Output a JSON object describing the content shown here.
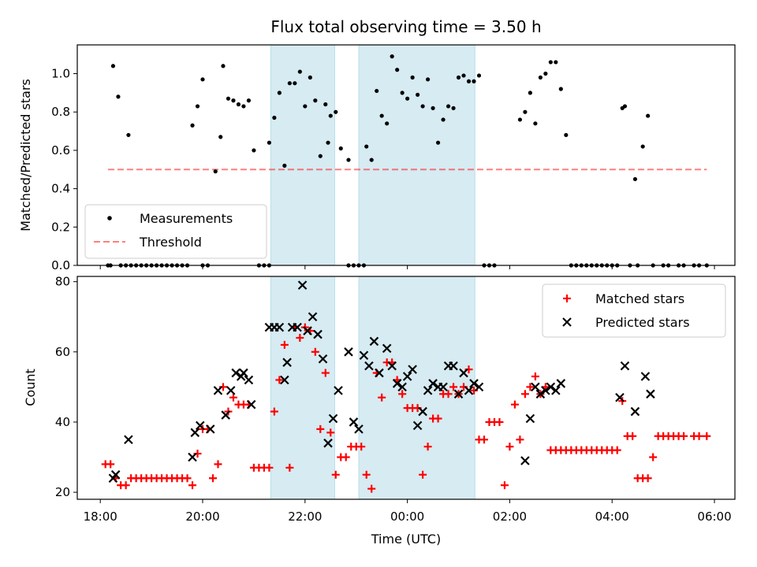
{
  "chart_data": [
    {
      "type": "scatter",
      "title": "Flux total observing time = 3.50 h",
      "xlabel": "",
      "ylabel": "Matched/Predicted stars",
      "xlim": [
        17.55,
        30.4
      ],
      "ylim": [
        0.0,
        1.15
      ],
      "yticks": [
        0.0,
        0.2,
        0.4,
        0.6,
        0.8,
        1.0
      ],
      "ytick_labels": [
        "0.0",
        "0.2",
        "0.4",
        "0.6",
        "0.8",
        "1.0"
      ],
      "legend": {
        "position": "lower-left",
        "entries": [
          "Measurements",
          "Threshold"
        ]
      },
      "shaded_intervals": [
        [
          21.33,
          22.58
        ],
        [
          23.05,
          25.32
        ]
      ],
      "threshold": {
        "name": "Threshold",
        "value": 0.5,
        "x_range": [
          18.15,
          29.85
        ]
      },
      "series": [
        {
          "name": "Measurements",
          "x": [
            18.25,
            18.35,
            18.55,
            19.8,
            19.9,
            20.0,
            20.25,
            20.35,
            20.4,
            20.5,
            20.6,
            20.7,
            20.8,
            20.9,
            21.0,
            21.3,
            21.4,
            21.5,
            21.6,
            21.7,
            21.8,
            21.9,
            22.0,
            22.1,
            22.2,
            22.3,
            22.4,
            22.45,
            22.5,
            22.6,
            22.7,
            22.85,
            23.2,
            23.3,
            23.4,
            23.5,
            23.6,
            23.7,
            23.8,
            23.9,
            24.0,
            24.1,
            24.2,
            24.3,
            24.4,
            24.5,
            24.6,
            24.7,
            24.8,
            24.9,
            25.0,
            25.1,
            25.2,
            25.3,
            25.4,
            26.2,
            26.3,
            26.4,
            26.5,
            26.6,
            26.7,
            26.8,
            26.9,
            27.0,
            27.1,
            28.2,
            28.25,
            28.45,
            28.6,
            28.7,
            18.15,
            18.2,
            18.4,
            18.5,
            18.6,
            18.7,
            18.8,
            18.9,
            19.0,
            19.1,
            19.2,
            19.3,
            19.4,
            19.5,
            19.6,
            19.7,
            20.0,
            20.1,
            21.1,
            21.2,
            21.3,
            22.85,
            22.95,
            23.05,
            23.15,
            25.5,
            25.6,
            25.7,
            27.2,
            27.3,
            27.4,
            27.5,
            27.6,
            27.7,
            27.8,
            27.9,
            28.0,
            28.1,
            28.35,
            28.5,
            28.8,
            29.0,
            29.1,
            29.3,
            29.4,
            29.6,
            29.7,
            29.85
          ],
          "y": [
            1.04,
            0.88,
            0.68,
            0.73,
            0.83,
            0.97,
            0.49,
            0.67,
            1.04,
            0.87,
            0.86,
            0.84,
            0.83,
            0.86,
            0.6,
            0.64,
            0.77,
            0.9,
            0.52,
            0.95,
            0.95,
            1.01,
            0.83,
            0.98,
            0.86,
            0.57,
            0.84,
            0.64,
            0.78,
            0.8,
            0.61,
            0.55,
            0.62,
            0.55,
            0.91,
            0.78,
            0.74,
            1.09,
            1.02,
            0.9,
            0.87,
            0.98,
            0.89,
            0.83,
            0.97,
            0.82,
            0.64,
            0.76,
            0.83,
            0.82,
            0.98,
            0.99,
            0.96,
            0.96,
            0.99,
            0.76,
            0.8,
            0.9,
            0.74,
            0.98,
            1.0,
            1.06,
            1.06,
            0.92,
            0.68,
            0.82,
            0.83,
            0.45,
            0.62,
            0.78,
            0.0,
            0.0,
            0.0,
            0.0,
            0.0,
            0.0,
            0.0,
            0.0,
            0.0,
            0.0,
            0.0,
            0.0,
            0.0,
            0.0,
            0.0,
            0.0,
            0.0,
            0.0,
            0.0,
            0.0,
            0.0,
            0.0,
            0.0,
            0.0,
            0.0,
            0.0,
            0.0,
            0.0,
            0.0,
            0.0,
            0.0,
            0.0,
            0.0,
            0.0,
            0.0,
            0.0,
            0.0,
            0.0,
            0.0,
            0.0,
            0.0,
            0.0,
            0.0,
            0.0,
            0.0,
            0.0,
            0.0,
            0.0
          ]
        }
      ]
    },
    {
      "type": "scatter",
      "title": "",
      "xlabel": "Time (UTC)",
      "ylabel": "Count",
      "xlim": [
        17.55,
        30.4
      ],
      "ylim": [
        18.0,
        81.5
      ],
      "yticks": [
        20,
        40,
        60,
        80
      ],
      "ytick_labels": [
        "20",
        "40",
        "60",
        "80"
      ],
      "xticks": [
        18,
        20,
        22,
        24,
        26,
        28,
        30
      ],
      "xtick_labels": [
        "18:00",
        "20:00",
        "22:00",
        "00:00",
        "02:00",
        "04:00",
        "06:00"
      ],
      "legend": {
        "position": "upper-right",
        "entries": [
          "Matched stars",
          "Predicted stars"
        ]
      },
      "shaded_intervals": [
        [
          21.33,
          22.58
        ],
        [
          23.05,
          25.32
        ]
      ],
      "series": [
        {
          "name": "Matched stars",
          "x": [
            18.1,
            18.2,
            18.3,
            18.4,
            18.5,
            18.6,
            18.7,
            18.8,
            18.9,
            19.0,
            19.1,
            19.2,
            19.3,
            19.4,
            19.5,
            19.6,
            19.7,
            19.8,
            19.9,
            20.0,
            20.1,
            20.2,
            20.3,
            20.4,
            20.5,
            20.6,
            20.7,
            20.8,
            20.9,
            21.0,
            21.1,
            21.2,
            21.3,
            21.4,
            21.5,
            21.6,
            21.7,
            21.8,
            21.9,
            22.0,
            22.1,
            22.2,
            22.3,
            22.4,
            22.5,
            22.6,
            22.7,
            22.8,
            22.9,
            23.0,
            23.1,
            23.2,
            23.3,
            23.4,
            23.5,
            23.6,
            23.7,
            23.8,
            23.9,
            24.0,
            24.1,
            24.2,
            24.3,
            24.4,
            24.5,
            24.6,
            24.7,
            24.8,
            24.9,
            25.0,
            25.1,
            25.2,
            25.3,
            25.4,
            25.5,
            25.6,
            25.7,
            25.8,
            25.9,
            26.0,
            26.1,
            26.2,
            26.3,
            26.4,
            26.5,
            26.6,
            26.7,
            26.8,
            26.9,
            27.0,
            27.1,
            27.2,
            27.3,
            27.4,
            27.5,
            27.6,
            27.7,
            27.8,
            27.9,
            28.0,
            28.1,
            28.2,
            28.3,
            28.4,
            28.5,
            28.6,
            28.7,
            28.8,
            28.9,
            29.0,
            29.1,
            29.2,
            29.3,
            29.4,
            29.6,
            29.7,
            29.85
          ],
          "y": [
            28,
            28,
            24,
            22,
            22,
            24,
            24,
            24,
            24,
            24,
            24,
            24,
            24,
            24,
            24,
            24,
            24,
            22,
            31,
            38,
            38,
            24,
            28,
            50,
            43,
            47,
            45,
            45,
            45,
            27,
            27,
            27,
            27,
            43,
            52,
            62,
            27,
            67,
            64,
            67,
            66,
            60,
            38,
            54,
            37,
            25,
            30,
            30,
            33,
            33,
            33,
            25,
            21,
            54,
            47,
            57,
            57,
            52,
            48,
            44,
            44,
            44,
            25,
            33,
            41,
            41,
            48,
            48,
            50,
            48,
            50,
            55,
            49,
            35,
            35,
            40,
            40,
            40,
            22,
            33,
            45,
            35,
            48,
            50,
            53,
            48,
            50,
            32,
            32,
            32,
            32,
            32,
            32,
            32,
            32,
            32,
            32,
            32,
            32,
            32,
            32,
            46,
            36,
            36,
            24,
            24,
            24,
            30,
            36,
            36,
            36,
            36,
            36,
            36,
            36,
            36,
            36
          ]
        },
        {
          "name": "Predicted stars",
          "x": [
            18.25,
            18.3,
            18.55,
            19.8,
            19.85,
            19.95,
            20.15,
            20.3,
            20.45,
            20.55,
            20.65,
            20.75,
            20.8,
            20.9,
            20.95,
            21.3,
            21.4,
            21.5,
            21.6,
            21.65,
            21.75,
            21.85,
            21.95,
            22.05,
            22.15,
            22.25,
            22.35,
            22.45,
            22.55,
            22.65,
            22.85,
            22.95,
            23.05,
            23.15,
            23.25,
            23.35,
            23.45,
            23.6,
            23.7,
            23.8,
            23.9,
            24.0,
            24.1,
            24.2,
            24.3,
            24.4,
            24.5,
            24.6,
            24.7,
            24.8,
            24.9,
            25.0,
            25.1,
            25.2,
            25.3,
            25.4,
            26.3,
            26.4,
            26.5,
            26.6,
            26.7,
            26.8,
            26.9,
            27.0,
            28.15,
            28.25,
            28.45,
            28.65,
            28.75
          ],
          "y": [
            24,
            25,
            35,
            30,
            37,
            39,
            38,
            49,
            42,
            49,
            54,
            53,
            54,
            52,
            45,
            67,
            67,
            67,
            52,
            57,
            67,
            67,
            79,
            66,
            70,
            65,
            58,
            34,
            41,
            49,
            60,
            40,
            38,
            59,
            56,
            63,
            54,
            61,
            56,
            51,
            50,
            53,
            55,
            39,
            43,
            49,
            51,
            50,
            50,
            56,
            56,
            48,
            54,
            49,
            51,
            50,
            29,
            41,
            50,
            48,
            49,
            50,
            49,
            51,
            47,
            56,
            43,
            53,
            48
          ]
        }
      ]
    }
  ]
}
